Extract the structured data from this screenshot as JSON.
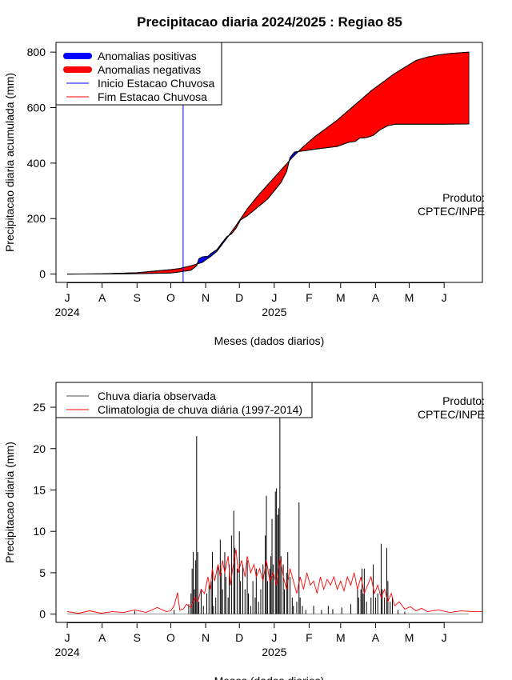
{
  "title": "Precipitacao diaria 2024/2025 : Regiao 85",
  "colors": {
    "positive_anomaly": "#0000ff",
    "negative_anomaly": "#ff0000",
    "observed": "#000000",
    "climatology": "#ff0000",
    "season_start_line": "#0000ff",
    "season_end_line": "#ff0000"
  },
  "months": [
    "J",
    "A",
    "S",
    "O",
    "N",
    "D",
    "J",
    "F",
    "M",
    "A",
    "M",
    "J"
  ],
  "years": [
    "2024",
    "2025"
  ],
  "credit": [
    "Produto:",
    "CPTEC/INPE"
  ],
  "chart_data": [
    {
      "type": "area",
      "ylabel": "Precipitacao diaria acumulada (mm)",
      "xlabel": "Meses (dados diarios)",
      "yticks": [
        0,
        200,
        400,
        600,
        800
      ],
      "ylim": [
        -30,
        835
      ],
      "xlim_days": [
        -10,
        369
      ],
      "legend": {
        "position": "top-left",
        "entries": [
          "Anomalias positivas",
          "Anomalias negativas",
          "Inicio Estacao Chuvosa",
          "Fim Estacao Chuvosa"
        ]
      },
      "season_start_day": 103,
      "observed_cumulative": [
        {
          "day": 0,
          "mm": 0
        },
        {
          "day": 31,
          "mm": 0.5
        },
        {
          "day": 62,
          "mm": 1.5
        },
        {
          "day": 92,
          "mm": 4
        },
        {
          "day": 100,
          "mm": 8
        },
        {
          "day": 110,
          "mm": 14
        },
        {
          "day": 115,
          "mm": 30
        },
        {
          "day": 117,
          "mm": 55
        },
        {
          "day": 120,
          "mm": 62
        },
        {
          "day": 125,
          "mm": 64
        },
        {
          "day": 128,
          "mm": 75
        },
        {
          "day": 133,
          "mm": 88
        },
        {
          "day": 137,
          "mm": 110
        },
        {
          "day": 142,
          "mm": 135
        },
        {
          "day": 146,
          "mm": 145
        },
        {
          "day": 150,
          "mm": 165
        },
        {
          "day": 154,
          "mm": 195
        },
        {
          "day": 160,
          "mm": 210
        },
        {
          "day": 166,
          "mm": 230
        },
        {
          "day": 172,
          "mm": 250
        },
        {
          "day": 178,
          "mm": 270
        },
        {
          "day": 184,
          "mm": 300
        },
        {
          "day": 190,
          "mm": 330
        },
        {
          "day": 195,
          "mm": 370
        },
        {
          "day": 198,
          "mm": 420
        },
        {
          "day": 202,
          "mm": 440
        },
        {
          "day": 212,
          "mm": 445
        },
        {
          "day": 220,
          "mm": 450
        },
        {
          "day": 230,
          "mm": 455
        },
        {
          "day": 240,
          "mm": 460
        },
        {
          "day": 250,
          "mm": 475
        },
        {
          "day": 256,
          "mm": 478
        },
        {
          "day": 260,
          "mm": 490
        },
        {
          "day": 266,
          "mm": 492
        },
        {
          "day": 272,
          "mm": 500
        },
        {
          "day": 278,
          "mm": 520
        },
        {
          "day": 285,
          "mm": 535
        },
        {
          "day": 292,
          "mm": 540
        },
        {
          "day": 310,
          "mm": 540
        },
        {
          "day": 335,
          "mm": 540
        },
        {
          "day": 357,
          "mm": 541
        }
      ],
      "climatology_cumulative": [
        {
          "day": 0,
          "mm": 0
        },
        {
          "day": 31,
          "mm": 1
        },
        {
          "day": 62,
          "mm": 5
        },
        {
          "day": 92,
          "mm": 16
        },
        {
          "day": 100,
          "mm": 20
        },
        {
          "day": 110,
          "mm": 30
        },
        {
          "day": 120,
          "mm": 42
        },
        {
          "day": 128,
          "mm": 65
        },
        {
          "day": 133,
          "mm": 82
        },
        {
          "day": 142,
          "mm": 130
        },
        {
          "day": 150,
          "mm": 175
        },
        {
          "day": 160,
          "mm": 235
        },
        {
          "day": 170,
          "mm": 285
        },
        {
          "day": 180,
          "mm": 330
        },
        {
          "day": 190,
          "mm": 375
        },
        {
          "day": 200,
          "mm": 420
        },
        {
          "day": 210,
          "mm": 460
        },
        {
          "day": 220,
          "mm": 495
        },
        {
          "day": 230,
          "mm": 525
        },
        {
          "day": 240,
          "mm": 555
        },
        {
          "day": 250,
          "mm": 590
        },
        {
          "day": 260,
          "mm": 625
        },
        {
          "day": 270,
          "mm": 660
        },
        {
          "day": 280,
          "mm": 690
        },
        {
          "day": 290,
          "mm": 720
        },
        {
          "day": 300,
          "mm": 745
        },
        {
          "day": 310,
          "mm": 770
        },
        {
          "day": 320,
          "mm": 782
        },
        {
          "day": 330,
          "mm": 790
        },
        {
          "day": 340,
          "mm": 795
        },
        {
          "day": 357,
          "mm": 800
        }
      ]
    },
    {
      "type": "bar",
      "ylabel": "Precipitacao diaria (mm)",
      "xlabel": "Meses (dados diarios)",
      "yticks": [
        0,
        5,
        10,
        15,
        20,
        25
      ],
      "ylim": [
        -1,
        28
      ],
      "xlim_days": [
        -10,
        369
      ],
      "legend": {
        "position": "top-left",
        "entries": [
          "Chuva diaria observada",
          "Climatologia de chuva diária (1997-2014)"
        ]
      },
      "observed_daily": [
        {
          "day": 60,
          "mm": 0.4
        },
        {
          "day": 95,
          "mm": 0.5
        },
        {
          "day": 108,
          "mm": 1.2
        },
        {
          "day": 110,
          "mm": 2.5
        },
        {
          "day": 111,
          "mm": 5.5
        },
        {
          "day": 112,
          "mm": 7.5
        },
        {
          "day": 113,
          "mm": 3
        },
        {
          "day": 114,
          "mm": 6.5
        },
        {
          "day": 115,
          "mm": 21.5
        },
        {
          "day": 116,
          "mm": 7.5
        },
        {
          "day": 117,
          "mm": 1.5
        },
        {
          "day": 119,
          "mm": 3
        },
        {
          "day": 121,
          "mm": 1
        },
        {
          "day": 124,
          "mm": 2.5
        },
        {
          "day": 126,
          "mm": 3.5
        },
        {
          "day": 128,
          "mm": 4
        },
        {
          "day": 129,
          "mm": 7.5
        },
        {
          "day": 130,
          "mm": 1
        },
        {
          "day": 132,
          "mm": 2
        },
        {
          "day": 134,
          "mm": 6
        },
        {
          "day": 136,
          "mm": 9
        },
        {
          "day": 137,
          "mm": 5
        },
        {
          "day": 138,
          "mm": 3
        },
        {
          "day": 140,
          "mm": 7.5
        },
        {
          "day": 141,
          "mm": 4.5
        },
        {
          "day": 143,
          "mm": 2
        },
        {
          "day": 144,
          "mm": 6
        },
        {
          "day": 146,
          "mm": 9.5
        },
        {
          "day": 148,
          "mm": 12.5
        },
        {
          "day": 149,
          "mm": 8
        },
        {
          "day": 151,
          "mm": 5.5
        },
        {
          "day": 153,
          "mm": 10
        },
        {
          "day": 154,
          "mm": 4
        },
        {
          "day": 156,
          "mm": 6
        },
        {
          "day": 158,
          "mm": 3
        },
        {
          "day": 160,
          "mm": 6.5
        },
        {
          "day": 161,
          "mm": 2.5
        },
        {
          "day": 163,
          "mm": 1
        },
        {
          "day": 165,
          "mm": 4
        },
        {
          "day": 167,
          "mm": 2
        },
        {
          "day": 168,
          "mm": 5.5
        },
        {
          "day": 170,
          "mm": 1.5
        },
        {
          "day": 172,
          "mm": 3
        },
        {
          "day": 174,
          "mm": 6
        },
        {
          "day": 176,
          "mm": 9.5
        },
        {
          "day": 177,
          "mm": 14.3
        },
        {
          "day": 178,
          "mm": 4
        },
        {
          "day": 180,
          "mm": 5.5
        },
        {
          "day": 181,
          "mm": 7
        },
        {
          "day": 182,
          "mm": 11.5
        },
        {
          "day": 183,
          "mm": 6
        },
        {
          "day": 185,
          "mm": 14.8
        },
        {
          "day": 186,
          "mm": 15.2
        },
        {
          "day": 187,
          "mm": 12
        },
        {
          "day": 188,
          "mm": 12.8
        },
        {
          "day": 189,
          "mm": 26.5
        },
        {
          "day": 190,
          "mm": 7
        },
        {
          "day": 192,
          "mm": 6
        },
        {
          "day": 193,
          "mm": 3
        },
        {
          "day": 195,
          "mm": 5
        },
        {
          "day": 196,
          "mm": 7.5
        },
        {
          "day": 198,
          "mm": 4.5
        },
        {
          "day": 200,
          "mm": 2
        },
        {
          "day": 201,
          "mm": 1
        },
        {
          "day": 204,
          "mm": 1.5
        },
        {
          "day": 206,
          "mm": 13.5
        },
        {
          "day": 207,
          "mm": 2
        },
        {
          "day": 209,
          "mm": 1
        },
        {
          "day": 212,
          "mm": 0.5
        },
        {
          "day": 219,
          "mm": 1
        },
        {
          "day": 226,
          "mm": 0.5
        },
        {
          "day": 232,
          "mm": 1
        },
        {
          "day": 236,
          "mm": 0.6
        },
        {
          "day": 244,
          "mm": 0.8
        },
        {
          "day": 252,
          "mm": 1.2
        },
        {
          "day": 258,
          "mm": 3
        },
        {
          "day": 259,
          "mm": 2
        },
        {
          "day": 261,
          "mm": 3
        },
        {
          "day": 262,
          "mm": 5.5
        },
        {
          "day": 263,
          "mm": 2.5
        },
        {
          "day": 264,
          "mm": 5.5
        },
        {
          "day": 266,
          "mm": 1.5
        },
        {
          "day": 270,
          "mm": 2
        },
        {
          "day": 272,
          "mm": 6
        },
        {
          "day": 274,
          "mm": 2
        },
        {
          "day": 276,
          "mm": 2.5
        },
        {
          "day": 279,
          "mm": 8.5
        },
        {
          "day": 280,
          "mm": 3
        },
        {
          "day": 282,
          "mm": 2
        },
        {
          "day": 284,
          "mm": 8
        },
        {
          "day": 285,
          "mm": 4
        },
        {
          "day": 287,
          "mm": 1.5
        },
        {
          "day": 289,
          "mm": 2
        },
        {
          "day": 294,
          "mm": 0.5
        },
        {
          "day": 300,
          "mm": 0.3
        }
      ],
      "climatology_daily": [
        {
          "day": 0,
          "mm": 0.3
        },
        {
          "day": 10,
          "mm": 0.1
        },
        {
          "day": 20,
          "mm": 0.4
        },
        {
          "day": 30,
          "mm": 0.1
        },
        {
          "day": 40,
          "mm": 0.3
        },
        {
          "day": 50,
          "mm": 0.2
        },
        {
          "day": 60,
          "mm": 0.5
        },
        {
          "day": 70,
          "mm": 0.2
        },
        {
          "day": 80,
          "mm": 0.8
        },
        {
          "day": 88,
          "mm": 0.3
        },
        {
          "day": 92,
          "mm": 0.4
        },
        {
          "day": 95,
          "mm": 1
        },
        {
          "day": 98,
          "mm": 2.6
        },
        {
          "day": 100,
          "mm": 0.5
        },
        {
          "day": 103,
          "mm": 0.6
        },
        {
          "day": 106,
          "mm": 1.2
        },
        {
          "day": 110,
          "mm": 0.8
        },
        {
          "day": 113,
          "mm": 2
        },
        {
          "day": 116,
          "mm": 1.5
        },
        {
          "day": 119,
          "mm": 3
        },
        {
          "day": 122,
          "mm": 2.5
        },
        {
          "day": 125,
          "mm": 4.5
        },
        {
          "day": 127,
          "mm": 3
        },
        {
          "day": 129,
          "mm": 5.5
        },
        {
          "day": 131,
          "mm": 4
        },
        {
          "day": 134,
          "mm": 6
        },
        {
          "day": 136,
          "mm": 4.5
        },
        {
          "day": 138,
          "mm": 6.5
        },
        {
          "day": 140,
          "mm": 5
        },
        {
          "day": 143,
          "mm": 7
        },
        {
          "day": 145,
          "mm": 3.5
        },
        {
          "day": 147,
          "mm": 5.5
        },
        {
          "day": 150,
          "mm": 7.8
        },
        {
          "day": 152,
          "mm": 5
        },
        {
          "day": 155,
          "mm": 6.5
        },
        {
          "day": 158,
          "mm": 4.5
        },
        {
          "day": 160,
          "mm": 7
        },
        {
          "day": 163,
          "mm": 5
        },
        {
          "day": 166,
          "mm": 6
        },
        {
          "day": 168,
          "mm": 4.5
        },
        {
          "day": 171,
          "mm": 5.5
        },
        {
          "day": 174,
          "mm": 4
        },
        {
          "day": 177,
          "mm": 6.5
        },
        {
          "day": 180,
          "mm": 4
        },
        {
          "day": 183,
          "mm": 5
        },
        {
          "day": 186,
          "mm": 3.5
        },
        {
          "day": 189,
          "mm": 6.8
        },
        {
          "day": 192,
          "mm": 4.5
        },
        {
          "day": 195,
          "mm": 3
        },
        {
          "day": 198,
          "mm": 5.5
        },
        {
          "day": 201,
          "mm": 4
        },
        {
          "day": 204,
          "mm": 2.5
        },
        {
          "day": 207,
          "mm": 4.5
        },
        {
          "day": 210,
          "mm": 3
        },
        {
          "day": 213,
          "mm": 5
        },
        {
          "day": 216,
          "mm": 3.5
        },
        {
          "day": 219,
          "mm": 4
        },
        {
          "day": 222,
          "mm": 2.5
        },
        {
          "day": 225,
          "mm": 4.5
        },
        {
          "day": 228,
          "mm": 3
        },
        {
          "day": 231,
          "mm": 4.2
        },
        {
          "day": 234,
          "mm": 3.5
        },
        {
          "day": 237,
          "mm": 4.5
        },
        {
          "day": 240,
          "mm": 3
        },
        {
          "day": 243,
          "mm": 4
        },
        {
          "day": 246,
          "mm": 2.8
        },
        {
          "day": 249,
          "mm": 4.5
        },
        {
          "day": 252,
          "mm": 3.5
        },
        {
          "day": 255,
          "mm": 5
        },
        {
          "day": 258,
          "mm": 3
        },
        {
          "day": 261,
          "mm": 4.5
        },
        {
          "day": 264,
          "mm": 2.5
        },
        {
          "day": 267,
          "mm": 3.5
        },
        {
          "day": 270,
          "mm": 4.5
        },
        {
          "day": 273,
          "mm": 2.5
        },
        {
          "day": 276,
          "mm": 3.5
        },
        {
          "day": 279,
          "mm": 2
        },
        {
          "day": 282,
          "mm": 3
        },
        {
          "day": 285,
          "mm": 1.5
        },
        {
          "day": 288,
          "mm": 2.5
        },
        {
          "day": 291,
          "mm": 1
        },
        {
          "day": 295,
          "mm": 1.5
        },
        {
          "day": 300,
          "mm": 0.6
        },
        {
          "day": 305,
          "mm": 0.9
        },
        {
          "day": 310,
          "mm": 0.4
        },
        {
          "day": 315,
          "mm": 0.7
        },
        {
          "day": 320,
          "mm": 0.3
        },
        {
          "day": 330,
          "mm": 0.5
        },
        {
          "day": 340,
          "mm": 0.2
        },
        {
          "day": 350,
          "mm": 0.4
        },
        {
          "day": 360,
          "mm": 0.3
        },
        {
          "day": 369,
          "mm": 0.3
        }
      ]
    }
  ]
}
